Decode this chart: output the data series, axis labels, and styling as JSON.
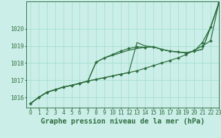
{
  "title": "Graphe pression niveau de la mer (hPa)",
  "background_color": "#cceee8",
  "grid_color": "#99ddcc",
  "line_color": "#2d6e3e",
  "xlim": [
    -0.5,
    23
  ],
  "ylim": [
    1015.4,
    1021.6
  ],
  "yticks": [
    1016,
    1017,
    1018,
    1019,
    1020
  ],
  "xticks": [
    0,
    1,
    2,
    3,
    4,
    5,
    6,
    7,
    8,
    9,
    10,
    11,
    12,
    13,
    14,
    15,
    16,
    17,
    18,
    19,
    20,
    21,
    22,
    23
  ],
  "title_fontsize": 7.5,
  "tick_fontsize": 5.8,
  "series": [
    {
      "y": [
        1015.65,
        1016.0,
        1016.3,
        1016.45,
        1016.6,
        1016.7,
        1016.82,
        1016.95,
        1017.05,
        1017.15,
        1017.25,
        1017.35,
        1017.45,
        1017.55,
        1017.7,
        1017.85,
        1018.0,
        1018.15,
        1018.3,
        1018.5,
        1018.75,
        1019.0,
        1019.3,
        1021.5
      ],
      "marker": true,
      "linewidth": 0.9
    },
    {
      "y": [
        1015.65,
        1016.0,
        1016.3,
        1016.45,
        1016.6,
        1016.7,
        1016.82,
        1016.95,
        1017.05,
        1017.15,
        1017.25,
        1017.35,
        1017.45,
        1019.2,
        1019.0,
        1018.95,
        1018.8,
        1018.7,
        1018.65,
        1018.6,
        1018.7,
        1018.8,
        1020.1,
        1021.5
      ],
      "marker": false,
      "linewidth": 0.9
    },
    {
      "y": [
        1015.65,
        1016.0,
        1016.3,
        1016.45,
        1016.6,
        1016.7,
        1016.82,
        1016.95,
        1018.05,
        1018.3,
        1018.45,
        1018.6,
        1018.75,
        1018.85,
        1018.92,
        1018.95,
        1018.8,
        1018.7,
        1018.65,
        1018.6,
        1018.7,
        1018.8,
        1020.1,
        1021.5
      ],
      "marker": false,
      "linewidth": 0.9
    },
    {
      "y": [
        1015.65,
        1016.0,
        1016.3,
        1016.45,
        1016.6,
        1016.7,
        1016.82,
        1016.95,
        1018.05,
        1018.3,
        1018.5,
        1018.7,
        1018.85,
        1018.95,
        1018.92,
        1018.95,
        1018.8,
        1018.7,
        1018.65,
        1018.6,
        1018.7,
        1019.2,
        1020.1,
        1021.5
      ],
      "marker": true,
      "linewidth": 0.9
    }
  ]
}
